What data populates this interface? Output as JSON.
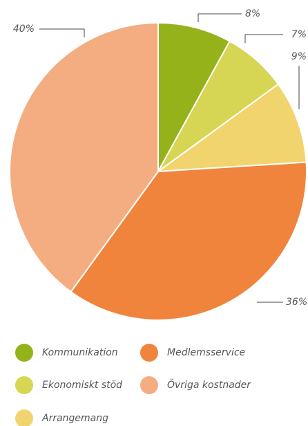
{
  "chart_data": {
    "type": "pie",
    "categories": [
      "Kommunikation",
      "Ekonomiskt stöd",
      "Arrangemang",
      "Medlemsservice",
      "Övriga kostnader"
    ],
    "values": [
      8,
      7,
      9,
      36,
      40
    ],
    "value_labels": [
      "8%",
      "7%",
      "9%",
      "36%",
      "40%"
    ],
    "colors": [
      "#95b21a",
      "#d6d654",
      "#f2d46f",
      "#f0843c",
      "#f4ad80"
    ]
  }
}
